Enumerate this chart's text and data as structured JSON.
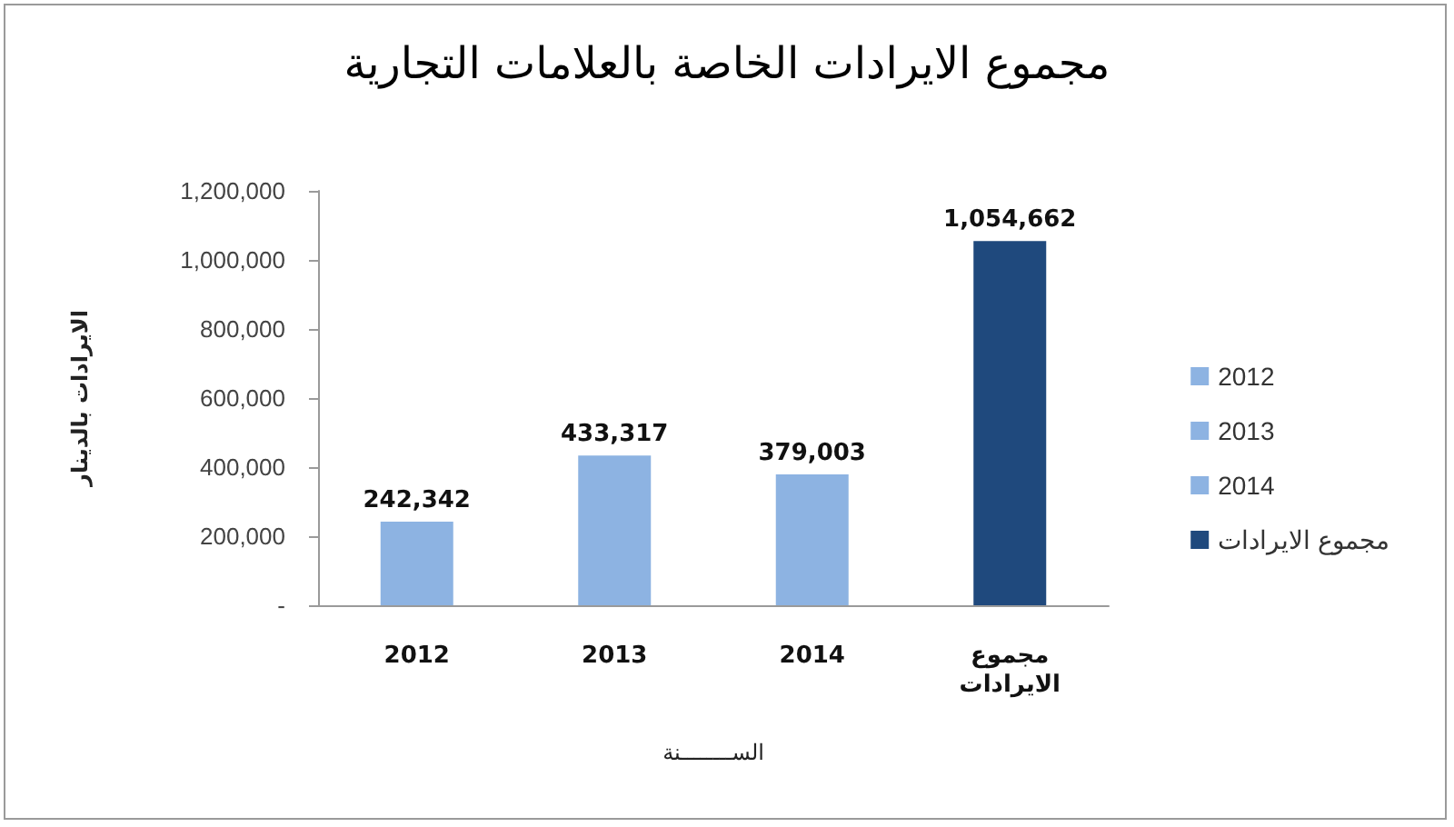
{
  "chart_data": {
    "type": "bar",
    "title": "مجموع الايرادات الخاصة بالعلامات التجارية",
    "xlabel": "الســــــــنة",
    "ylabel": "الايرادات بالدينار",
    "categories": [
      "2012",
      "2013",
      "2014",
      "مجموع الايرادات"
    ],
    "series": [
      {
        "name": "2012",
        "color": "#8db3e2",
        "values": [
          242342,
          null,
          null,
          null
        ],
        "value_labels": [
          "242,342",
          null,
          null,
          null
        ]
      },
      {
        "name": "2013",
        "color": "#8db3e2",
        "values": [
          null,
          433317,
          null,
          null
        ],
        "value_labels": [
          null,
          "433,317",
          null,
          null
        ]
      },
      {
        "name": "2014",
        "color": "#8db3e2",
        "values": [
          null,
          null,
          379003,
          null
        ],
        "value_labels": [
          null,
          null,
          "379,003",
          null
        ]
      },
      {
        "name": "مجموع الايرادات",
        "color": "#1f497d",
        "values": [
          null,
          null,
          null,
          1054662
        ],
        "value_labels": [
          null,
          null,
          null,
          "1,054,662"
        ]
      }
    ],
    "ylim": [
      0,
      1200000
    ],
    "yticks": [
      {
        "value": 0,
        "label": "-"
      },
      {
        "value": 200000,
        "label": "200,000"
      },
      {
        "value": 400000,
        "label": "400,000"
      },
      {
        "value": 600000,
        "label": "600,000"
      },
      {
        "value": 800000,
        "label": "800,000"
      },
      {
        "value": 1000000,
        "label": "1,000,000"
      },
      {
        "value": 1200000,
        "label": "1,200,000"
      }
    ],
    "grid": false,
    "legend": "right"
  }
}
